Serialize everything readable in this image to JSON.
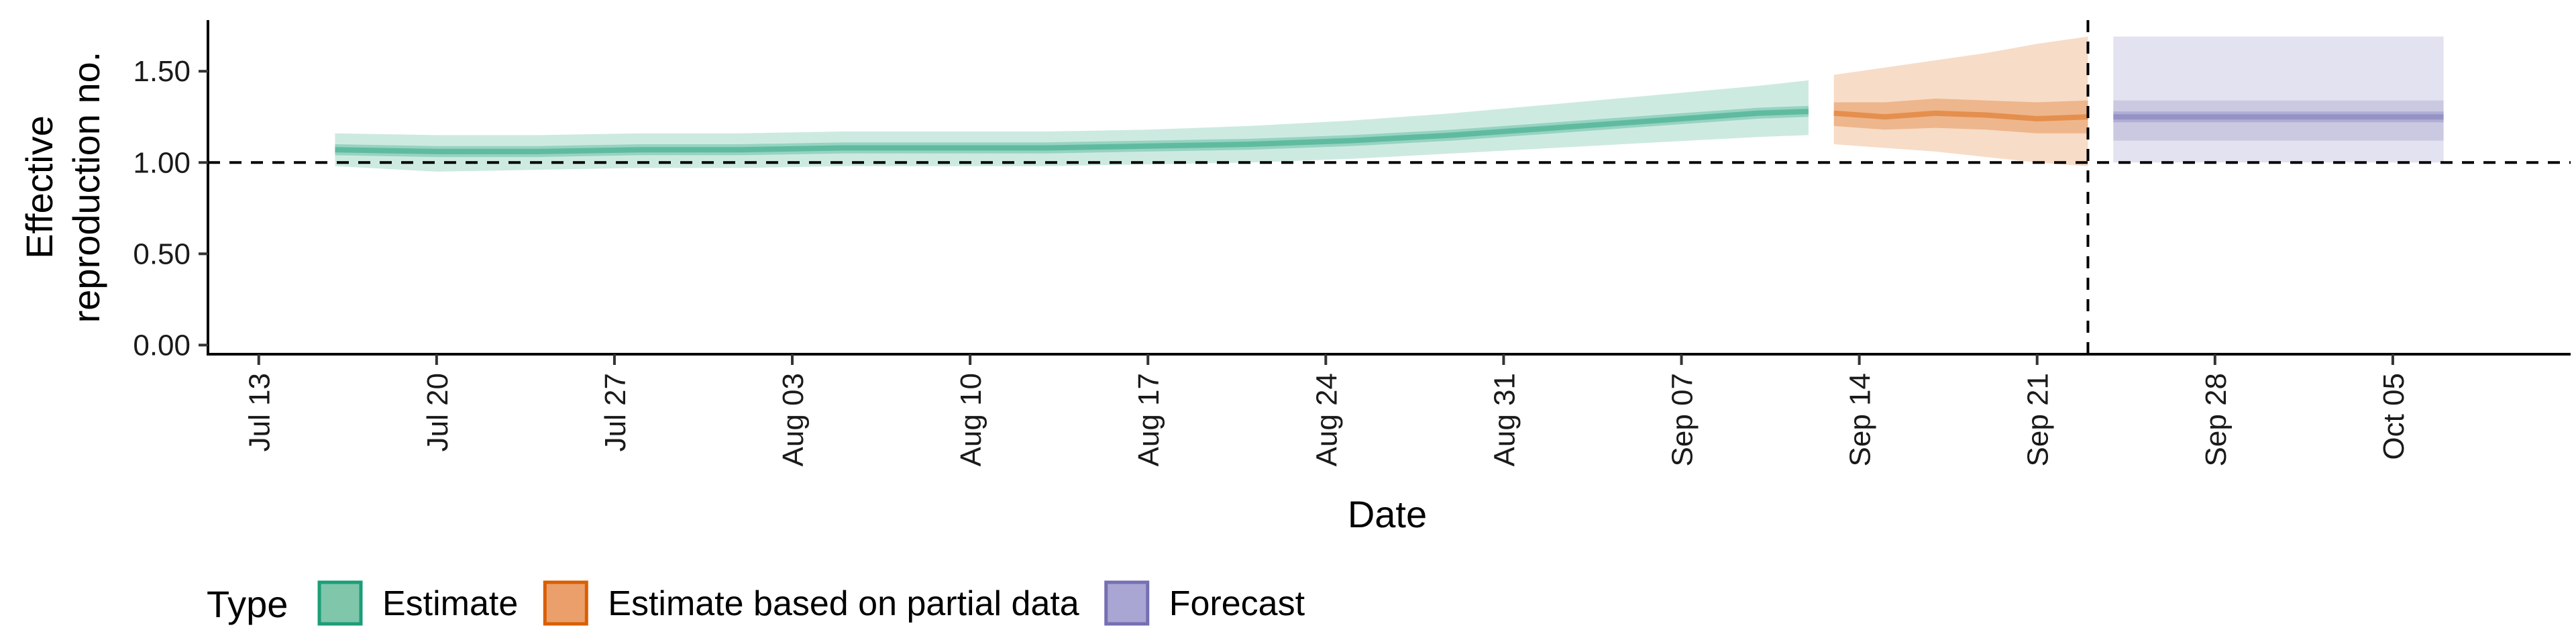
{
  "chart_data": {
    "type": "area",
    "ylabel_lines": [
      "Effective",
      "reproduction no."
    ],
    "xlabel": "Date",
    "ylim": [
      -0.05,
      1.78
    ],
    "xlim": [
      "2020-07-11",
      "2020-10-12"
    ],
    "y_ticks": [
      "0.00",
      "0.50",
      "1.00",
      "1.50"
    ],
    "y_tick_values": [
      0,
      0.5,
      1.0,
      1.5
    ],
    "x_ticks": [
      {
        "date": "2020-07-13",
        "label": "Jul 13"
      },
      {
        "date": "2020-07-20",
        "label": "Jul 20"
      },
      {
        "date": "2020-07-27",
        "label": "Jul 27"
      },
      {
        "date": "2020-08-03",
        "label": "Aug 03"
      },
      {
        "date": "2020-08-10",
        "label": "Aug 10"
      },
      {
        "date": "2020-08-17",
        "label": "Aug 17"
      },
      {
        "date": "2020-08-24",
        "label": "Aug 24"
      },
      {
        "date": "2020-08-31",
        "label": "Aug 31"
      },
      {
        "date": "2020-09-07",
        "label": "Sep 07"
      },
      {
        "date": "2020-09-14",
        "label": "Sep 14"
      },
      {
        "date": "2020-09-21",
        "label": "Sep 21"
      },
      {
        "date": "2020-09-28",
        "label": "Sep 28"
      },
      {
        "date": "2020-10-05",
        "label": "Oct 05"
      }
    ],
    "reference_line_y": 1.0,
    "reference_line_date": "2020-09-23",
    "series": [
      {
        "name": "Estimate",
        "color": "#1b9e77",
        "x": [
          "2020-07-16",
          "2020-07-20",
          "2020-07-24",
          "2020-07-28",
          "2020-08-01",
          "2020-08-05",
          "2020-08-09",
          "2020-08-13",
          "2020-08-17",
          "2020-08-21",
          "2020-08-25",
          "2020-08-29",
          "2020-09-02",
          "2020-09-06",
          "2020-09-10",
          "2020-09-12"
        ],
        "median": [
          1.07,
          1.06,
          1.06,
          1.07,
          1.07,
          1.08,
          1.08,
          1.08,
          1.09,
          1.1,
          1.12,
          1.15,
          1.19,
          1.23,
          1.27,
          1.28
        ],
        "lower_50": [
          1.04,
          1.03,
          1.03,
          1.04,
          1.04,
          1.05,
          1.05,
          1.05,
          1.06,
          1.07,
          1.09,
          1.12,
          1.16,
          1.2,
          1.24,
          1.25
        ],
        "upper_50": [
          1.1,
          1.09,
          1.09,
          1.1,
          1.1,
          1.11,
          1.11,
          1.11,
          1.12,
          1.13,
          1.15,
          1.18,
          1.22,
          1.26,
          1.3,
          1.31
        ],
        "lower_90": [
          0.98,
          0.95,
          0.96,
          0.97,
          0.97,
          0.98,
          0.98,
          0.98,
          0.99,
          1.0,
          1.02,
          1.05,
          1.08,
          1.11,
          1.14,
          1.15
        ],
        "upper_90": [
          1.16,
          1.15,
          1.15,
          1.16,
          1.16,
          1.17,
          1.17,
          1.17,
          1.18,
          1.2,
          1.23,
          1.27,
          1.32,
          1.37,
          1.42,
          1.45
        ]
      },
      {
        "name": "Estimate based on partial data",
        "color": "#d95f02",
        "x": [
          "2020-09-13",
          "2020-09-15",
          "2020-09-17",
          "2020-09-19",
          "2020-09-21",
          "2020-09-23"
        ],
        "median": [
          1.27,
          1.25,
          1.27,
          1.26,
          1.24,
          1.25
        ],
        "lower_50": [
          1.2,
          1.18,
          1.19,
          1.18,
          1.16,
          1.16
        ],
        "upper_50": [
          1.33,
          1.33,
          1.35,
          1.34,
          1.33,
          1.34
        ],
        "lower_90": [
          1.1,
          1.08,
          1.06,
          1.03,
          1.0,
          0.98
        ],
        "upper_90": [
          1.48,
          1.52,
          1.56,
          1.6,
          1.65,
          1.69
        ]
      },
      {
        "name": "Forecast",
        "color": "#7570b3",
        "x": [
          "2020-09-24",
          "2020-10-07"
        ],
        "median": [
          1.25,
          1.25
        ],
        "lower_50": [
          1.22,
          1.22
        ],
        "upper_50": [
          1.28,
          1.28
        ],
        "lower_90": [
          1.12,
          1.12
        ],
        "upper_90": [
          1.34,
          1.34
        ],
        "lower_outer": [
          1.0,
          1.0
        ],
        "upper_outer": [
          1.69,
          1.69
        ]
      }
    ],
    "legend": {
      "title": "Type",
      "position": "bottom-left",
      "items": [
        {
          "label": "Estimate",
          "fill": "#7fc6ab",
          "stroke": "#1b9e77"
        },
        {
          "label": "Estimate based on partial data",
          "fill": "#eba06c",
          "stroke": "#d95f02"
        },
        {
          "label": "Forecast",
          "fill": "#aaa6d3",
          "stroke": "#7570b3"
        }
      ]
    }
  }
}
